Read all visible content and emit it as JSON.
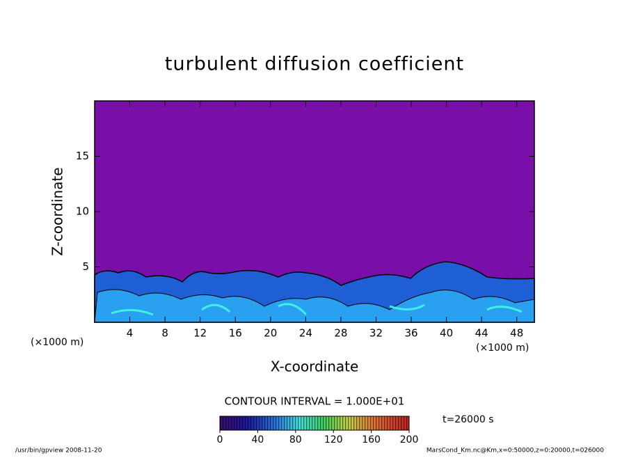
{
  "chart_data": {
    "type": "contour",
    "title": "turbulent diffusion coefficient",
    "x_label": "X-coordinate",
    "y_label": "Z-coordinate",
    "x_unit_label": "(×1000 m)",
    "y_unit_label": "(×1000 m)",
    "xlim": [
      0,
      50
    ],
    "ylim": [
      0,
      20
    ],
    "xticks": [
      4,
      8,
      12,
      16,
      20,
      24,
      28,
      32,
      36,
      40,
      44,
      48
    ],
    "yticks": [
      5,
      10,
      15
    ],
    "contour_interval": "CONTOUR INTERVAL = 1.000E+01",
    "time_label": "t=26000 s",
    "colorbar": {
      "lim": [
        0,
        200
      ],
      "ticks": [
        0,
        40,
        80,
        120,
        160,
        200
      ]
    },
    "footer_left": "/usr/bin/gpview  2008-11-20",
    "footer_right": "MarsCond_Km.nc@Km,x=0:50000,z=0:20000,t=026000"
  }
}
